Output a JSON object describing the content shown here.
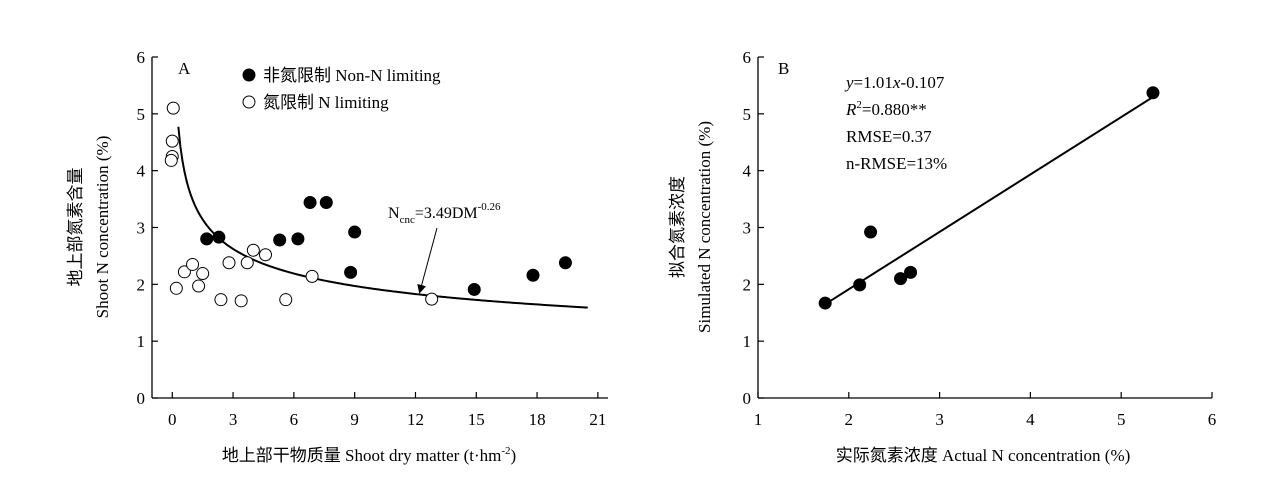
{
  "chart_data": [
    {
      "panel": "A",
      "type": "scatter",
      "xlabel": "地上部干物质量 Shoot dry matter (t·hm",
      "xlabel_sup": "-2",
      "xlabel_end": ")",
      "ylabel_line1": "地上部氮素含量",
      "ylabel_line2": "Shoot N concentration (%)",
      "xlim": [
        -1,
        21.5
      ],
      "ylim": [
        0,
        6
      ],
      "xticks": [
        0,
        3,
        6,
        9,
        12,
        15,
        18,
        21
      ],
      "yticks": [
        0,
        1,
        2,
        3,
        4,
        5,
        6
      ],
      "legend": {
        "position": "top-center",
        "filled_label": "非氮限制 Non-N limiting",
        "open_label": "氮限制 N limiting"
      },
      "series": [
        {
          "name": "非氮限制 Non-N limiting",
          "marker": "filled-circle",
          "points": [
            [
              1.7,
              2.8
            ],
            [
              2.3,
              2.83
            ],
            [
              5.3,
              2.78
            ],
            [
              6.2,
              2.8
            ],
            [
              6.8,
              3.44
            ],
            [
              7.6,
              3.44
            ],
            [
              8.8,
              2.21
            ],
            [
              9.0,
              2.92
            ],
            [
              14.9,
              1.91
            ],
            [
              17.8,
              2.16
            ],
            [
              19.4,
              2.38
            ]
          ]
        },
        {
          "name": "氮限制 N limiting",
          "marker": "open-circle",
          "points": [
            [
              0.05,
              5.1
            ],
            [
              0.0,
              4.52
            ],
            [
              0.0,
              4.25
            ],
            [
              -0.05,
              4.18
            ],
            [
              0.2,
              1.93
            ],
            [
              0.6,
              2.22
            ],
            [
              1.0,
              2.35
            ],
            [
              1.3,
              1.97
            ],
            [
              1.5,
              2.19
            ],
            [
              2.4,
              1.73
            ],
            [
              2.8,
              2.38
            ],
            [
              3.4,
              1.71
            ],
            [
              3.7,
              2.38
            ],
            [
              4.0,
              2.6
            ],
            [
              4.6,
              2.52
            ],
            [
              5.6,
              1.73
            ],
            [
              6.9,
              2.14
            ],
            [
              12.8,
              1.74
            ]
          ]
        }
      ],
      "curve": {
        "a": 3.49,
        "b": -0.26,
        "x_range": [
          0.3,
          20.5
        ],
        "label_main": "N",
        "label_sub": "cnc",
        "label_mid": "=3.49DM",
        "label_sup": "-0.26",
        "arrow_to": [
          12.2,
          1.85
        ]
      }
    },
    {
      "panel": "B",
      "type": "scatter",
      "xlabel": "实际氮素浓度 Actual N concentration (%)",
      "ylabel_line1": "拟合氮素浓度",
      "ylabel_line2": "Simulated N concentration (%)",
      "xlim": [
        1,
        6
      ],
      "ylim": [
        0,
        6
      ],
      "xticks": [
        1,
        2,
        3,
        4,
        5,
        6
      ],
      "yticks": [
        0,
        1,
        2,
        3,
        4,
        5,
        6
      ],
      "series": [
        {
          "name": "",
          "marker": "filled-circle",
          "points": [
            [
              1.74,
              1.67
            ],
            [
              2.12,
              1.99
            ],
            [
              2.24,
              2.92
            ],
            [
              2.57,
              2.1
            ],
            [
              2.68,
              2.21
            ],
            [
              5.35,
              5.37
            ]
          ]
        }
      ],
      "fit": {
        "slope": 1.01,
        "intercept": -0.107,
        "x_range": [
          1.74,
          5.35
        ]
      },
      "stats": {
        "eq_y": "y",
        "eq_mid": "=1.01",
        "eq_x": "x",
        "eq_end": "-0.107",
        "r2_R": "R",
        "r2_sup": "2",
        "r2_val": "=0.880**",
        "rmse": "RMSE=0.37",
        "nrmse": "n-RMSE=13%"
      }
    }
  ]
}
